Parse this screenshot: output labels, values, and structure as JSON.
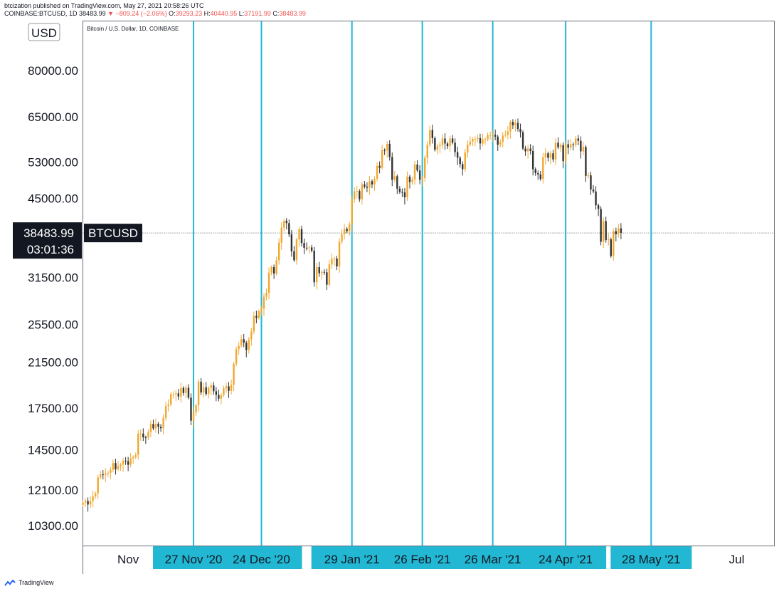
{
  "header": {
    "line1": "btcization published on TradingView.com, May 27, 2021 20:58:26 UTC",
    "symbol_line": "COINBASE:BTCUSD, 1D",
    "last": "38483.99",
    "change": "−809.24 (−2.06%)",
    "o_label": "O:",
    "o_value": "39293.23",
    "h_label": "H:",
    "h_value": "40440.95",
    "l_label": "L:",
    "l_value": "37191.99",
    "c_label": "C:",
    "c_value": "38483.99"
  },
  "chart_data": {
    "type": "candlestick",
    "title": "Bitcoin / U.S. Dollar, 1D, COINBASE",
    "currency_label": "USD",
    "y_scale": "log",
    "ylim": [
      9400,
      100000
    ],
    "y_ticks": [
      10300,
      12100,
      14500,
      17500,
      21500,
      25500,
      31500,
      45000,
      53000,
      65000,
      80000
    ],
    "y_tick_labels": [
      "10300.00",
      "12100.00",
      "14500.00",
      "17500.00",
      "21500.00",
      "25500.00",
      "31500.00",
      "45000.00",
      "53000.00",
      "65000.00",
      "80000.00"
    ],
    "xlim": [
      "2020-10-14",
      "2021-07-16"
    ],
    "x_axis_labels": [
      {
        "date": "2020-11-01",
        "label": "Nov"
      },
      {
        "date": "2021-07-01",
        "label": "Jul"
      }
    ],
    "vertical_markers": [
      {
        "date": "2020-11-27",
        "label": "27 Nov '20"
      },
      {
        "date": "2020-12-24",
        "label": "24 Dec '20"
      },
      {
        "date": "2021-01-29",
        "label": "29 Jan '21"
      },
      {
        "date": "2021-02-26",
        "label": "26 Feb '21"
      },
      {
        "date": "2021-03-26",
        "label": "26 Mar '21"
      },
      {
        "date": "2021-04-24",
        "label": "24 Apr '21"
      },
      {
        "date": "2021-05-28",
        "label": "28 May '21"
      }
    ],
    "last_price": 38483.99,
    "last_price_label": "38483.99",
    "countdown": "03:01:36",
    "symbol_tag": "BTCUSD",
    "close_series": {
      "start": "2020-10-14",
      "closes": [
        11430,
        11510,
        11330,
        11510,
        11760,
        11920,
        12800,
        12970,
        12940,
        13030,
        13070,
        13250,
        13650,
        13280,
        13460,
        13560,
        13800,
        13760,
        13550,
        13950,
        14020,
        14150,
        15590,
        15590,
        15330,
        15320,
        15700,
        16280,
        15960,
        16300,
        16080,
        15970,
        16730,
        17650,
        17780,
        18630,
        18650,
        18690,
        18430,
        19150,
        18720,
        19170,
        18330,
        16520,
        17150,
        17720,
        19700,
        18760,
        19210,
        18640,
        19140,
        19370,
        18870,
        18560,
        18250,
        18550,
        19120,
        19290,
        18900,
        19430,
        21350,
        22800,
        23150,
        23850,
        23480,
        22720,
        23820,
        24700,
        26490,
        26260,
        27050,
        27380,
        28890,
        29370,
        32190,
        33000,
        32050,
        34050,
        36860,
        39430,
        40670,
        40240,
        38240,
        35440,
        34050,
        37390,
        39150,
        36800,
        36010,
        36000,
        36060,
        35540,
        30830,
        33000,
        32100,
        32300,
        32250,
        30500,
        33400,
        34300,
        34300,
        33100,
        37000,
        38300,
        39200,
        38800,
        40000,
        44800,
        46400,
        46500,
        44800,
        47900,
        47400,
        47200,
        48600,
        47900,
        49100,
        52100,
        51600,
        55900,
        55800,
        57500,
        54200,
        48900,
        49700,
        47000,
        46300,
        46200,
        45200,
        49600,
        48400,
        49000,
        52400,
        51000,
        48900,
        49300,
        54000,
        57300,
        61200,
        59000,
        56000,
        56900,
        57200,
        58900,
        57600,
        56900,
        58900,
        57800,
        55400,
        54000,
        52500,
        51300,
        55300,
        57300,
        58100,
        58800,
        58800,
        59000,
        57600,
        58700,
        58700,
        59800,
        59800,
        59900,
        59400,
        57300,
        58000,
        59700,
        59900,
        60800,
        63500,
        62500,
        63200,
        61500,
        60600,
        56300,
        55600,
        56300,
        55700,
        51300,
        50400,
        50100,
        49100,
        54100,
        55100,
        54000,
        55100,
        53600,
        57800,
        56600,
        57200,
        53200,
        57400,
        56500,
        57400,
        57200,
        58900,
        58300,
        55600,
        56700,
        49800,
        49900,
        46800,
        46400,
        43600,
        42900,
        37000,
        40600,
        37300,
        37400,
        34700,
        38800,
        38300,
        39300,
        38500
      ]
    }
  }
}
